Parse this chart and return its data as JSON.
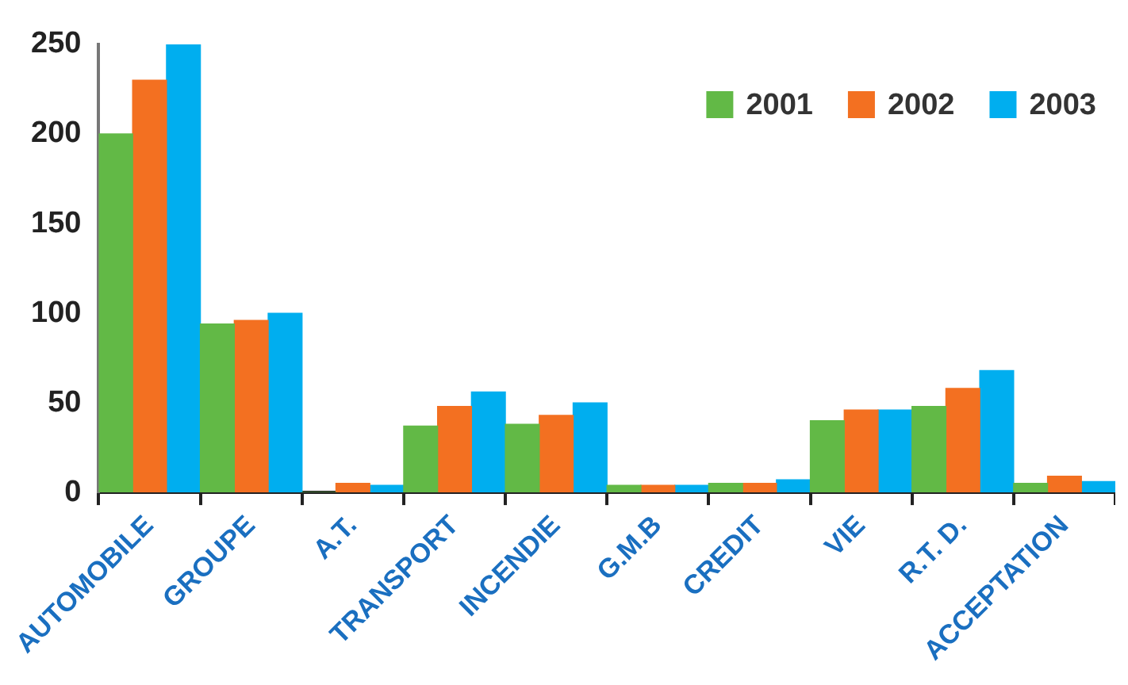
{
  "chart_data": {
    "type": "bar",
    "categories": [
      "AUTOMOBILE",
      "GROUPE",
      "A.T.",
      "TRANSPORT",
      "INCENDIE",
      "G.M.B",
      "CREDIT",
      "VIE",
      "R.T. D.",
      "ACCEPTATION"
    ],
    "series": [
      {
        "name": "2001",
        "color": "#62b946",
        "values": [
          200,
          94,
          0,
          37,
          38,
          4,
          5,
          40,
          48,
          5
        ]
      },
      {
        "name": "2002",
        "color": "#f37021",
        "values": [
          230,
          96,
          5,
          48,
          43,
          4,
          5,
          46,
          58,
          9
        ]
      },
      {
        "name": "2003",
        "color": "#00aeef",
        "values": [
          250,
          100,
          4,
          56,
          50,
          4,
          7,
          46,
          68,
          6
        ]
      }
    ],
    "ylim": [
      0,
      250
    ],
    "yticks": [
      0,
      50,
      100,
      150,
      200,
      250
    ],
    "legend": "top right"
  }
}
